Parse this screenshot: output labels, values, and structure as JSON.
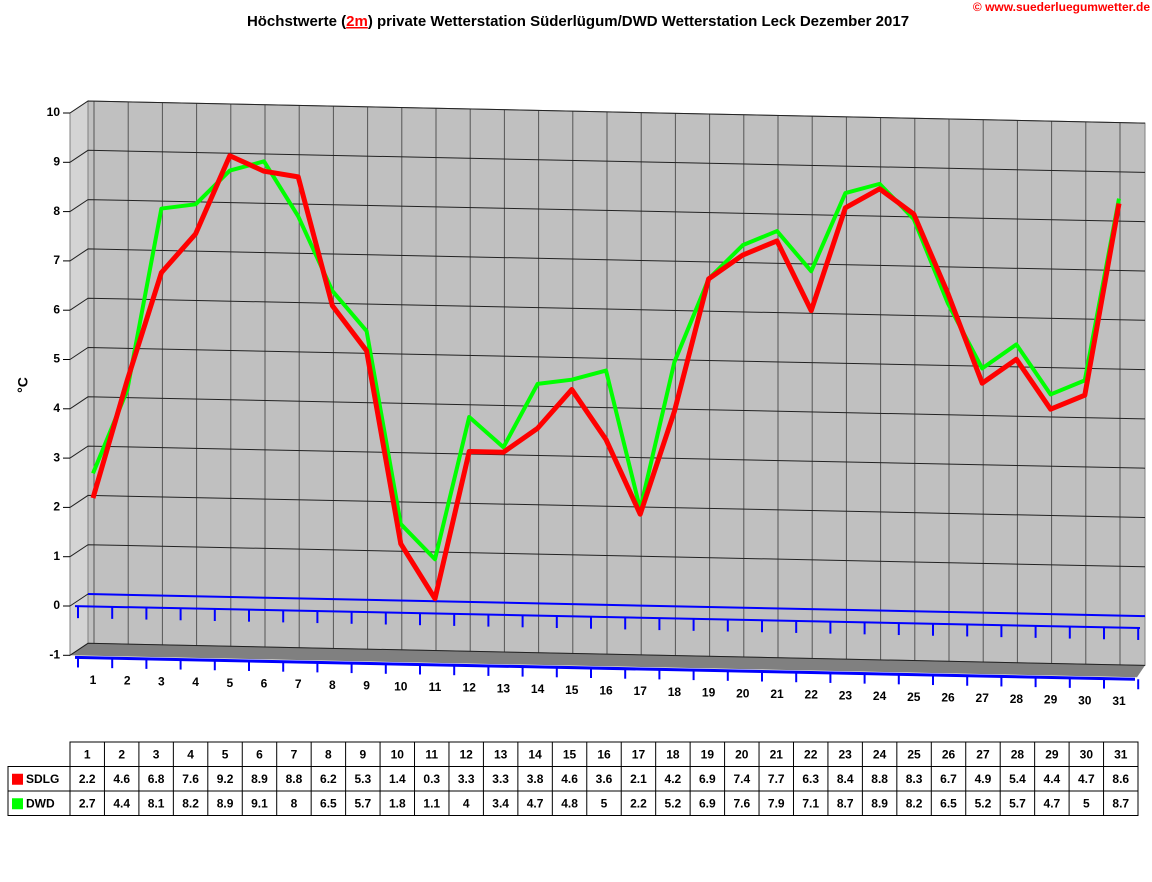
{
  "chart_data": {
    "type": "line",
    "title": {
      "before": "Höchstwerte (",
      "link": "2m",
      "after": ") private Wetterstation Süderlügum/DWD Wetterstation Leck Dezember 2017"
    },
    "copyright": "© www.suederluegumwetter.de",
    "y_label": "°C",
    "categories": [
      "1",
      "2",
      "3",
      "4",
      "5",
      "6",
      "7",
      "8",
      "9",
      "10",
      "11",
      "12",
      "13",
      "14",
      "15",
      "16",
      "17",
      "18",
      "19",
      "20",
      "21",
      "22",
      "23",
      "24",
      "25",
      "26",
      "27",
      "28",
      "29",
      "30",
      "31"
    ],
    "series": [
      {
        "name": "DWD",
        "color": "#00ff00",
        "values": [
          2.7,
          4.4,
          8.1,
          8.2,
          8.9,
          9.1,
          8,
          6.5,
          5.7,
          1.8,
          1.1,
          4,
          3.4,
          4.7,
          4.8,
          5,
          2.2,
          5.2,
          6.9,
          7.6,
          7.9,
          7.1,
          8.7,
          8.9,
          8.2,
          6.5,
          5.2,
          5.7,
          4.7,
          5,
          8.7
        ]
      },
      {
        "name": "SDLG",
        "color": "#ff0000",
        "values": [
          2.2,
          4.6,
          6.8,
          7.6,
          9.2,
          8.9,
          8.8,
          6.2,
          5.3,
          1.4,
          0.3,
          3.3,
          3.3,
          3.8,
          4.6,
          3.6,
          2.1,
          4.2,
          6.9,
          7.4,
          7.7,
          6.3,
          8.4,
          8.8,
          8.3,
          6.7,
          4.9,
          5.4,
          4.4,
          4.7,
          8.6
        ]
      }
    ],
    "table_order": [
      1,
      0
    ],
    "ylim": [
      -1,
      10
    ],
    "yticks": [
      -1,
      0,
      1,
      2,
      3,
      4,
      5,
      6,
      7,
      8,
      9,
      10
    ],
    "grid": true
  }
}
